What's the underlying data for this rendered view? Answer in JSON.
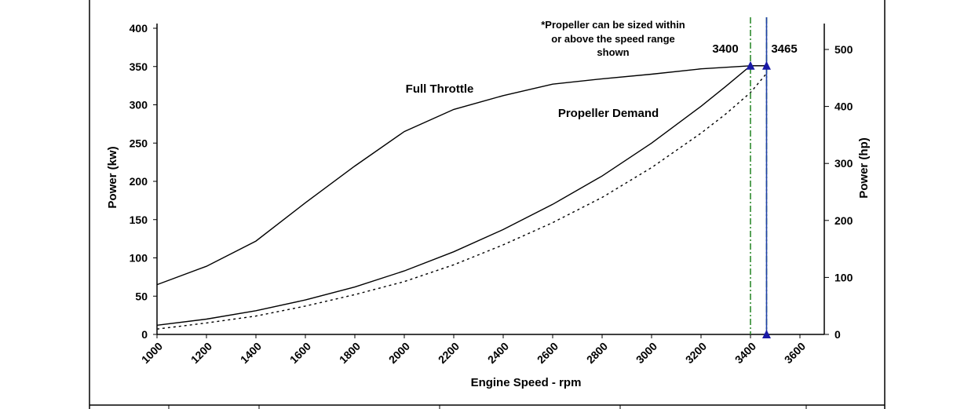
{
  "chart_data": {
    "type": "line",
    "title": "",
    "xlabel": "Engine Speed - rpm",
    "ylabel": "Power (kw)",
    "y2label": "Power (hp)",
    "xlim": [
      1000,
      3700
    ],
    "ylim": [
      0,
      410
    ],
    "y2lim": [
      0,
      550
    ],
    "x_ticks": [
      1000,
      1200,
      1400,
      1600,
      1800,
      2000,
      2200,
      2400,
      2600,
      2800,
      3000,
      3200,
      3400,
      3600
    ],
    "y_ticks": [
      0,
      50,
      100,
      150,
      200,
      250,
      300,
      350,
      400
    ],
    "y2_ticks": [
      0,
      100,
      200,
      300,
      400,
      500
    ],
    "grid": false,
    "legend": "none",
    "series": [
      {
        "name": "Full Throttle",
        "style": "solid",
        "color": "#000000",
        "x": [
          1000,
          1200,
          1400,
          1600,
          1800,
          2000,
          2200,
          2400,
          2600,
          2800,
          3000,
          3200,
          3400,
          3465
        ],
        "y": [
          65,
          89,
          122,
          172,
          220,
          265,
          294,
          312,
          327,
          334,
          340,
          347,
          351,
          351
        ]
      },
      {
        "name": "Propeller Demand",
        "style": "solid",
        "color": "#000000",
        "x": [
          1000,
          1200,
          1400,
          1600,
          1800,
          2000,
          2200,
          2400,
          2600,
          2800,
          3000,
          3200,
          3300,
          3400,
          3465
        ],
        "y": [
          12,
          20,
          31,
          45,
          62,
          83,
          108,
          137,
          170,
          207,
          250,
          298,
          324,
          351,
          351
        ]
      },
      {
        "style": "dotted",
        "color": "#000000",
        "x": [
          1000,
          1200,
          1400,
          1600,
          1800,
          2000,
          2200,
          2400,
          2600,
          2800,
          3000,
          3200,
          3300,
          3400,
          3465
        ],
        "y": [
          7,
          15,
          24,
          37,
          52,
          69,
          91,
          117,
          146,
          179,
          218,
          263,
          288,
          316,
          341
        ]
      }
    ],
    "markers": [
      {
        "x": 3400,
        "y": 351
      },
      {
        "x": 3465,
        "y": 351
      },
      {
        "x": 3465,
        "y": 0
      }
    ],
    "vlines": [
      {
        "x": 3400,
        "style": "dashdot",
        "color": "#2e8b2e"
      },
      {
        "x": 3465,
        "style": "dashdot",
        "color": "#2e8b2e"
      },
      {
        "x": 3465,
        "style": "solid",
        "color": "#1f3fa8"
      }
    ],
    "annotations": {
      "full_throttle": "Full Throttle",
      "propeller_demand": "Propeller Demand",
      "rpm_3400": "3400",
      "rpm_3465": "3465",
      "note_line1": "*Propeller can be sized within",
      "note_line2": "or above the speed range",
      "note_line3": "shown"
    },
    "colors": {
      "marker": "#1a1aa6"
    }
  }
}
